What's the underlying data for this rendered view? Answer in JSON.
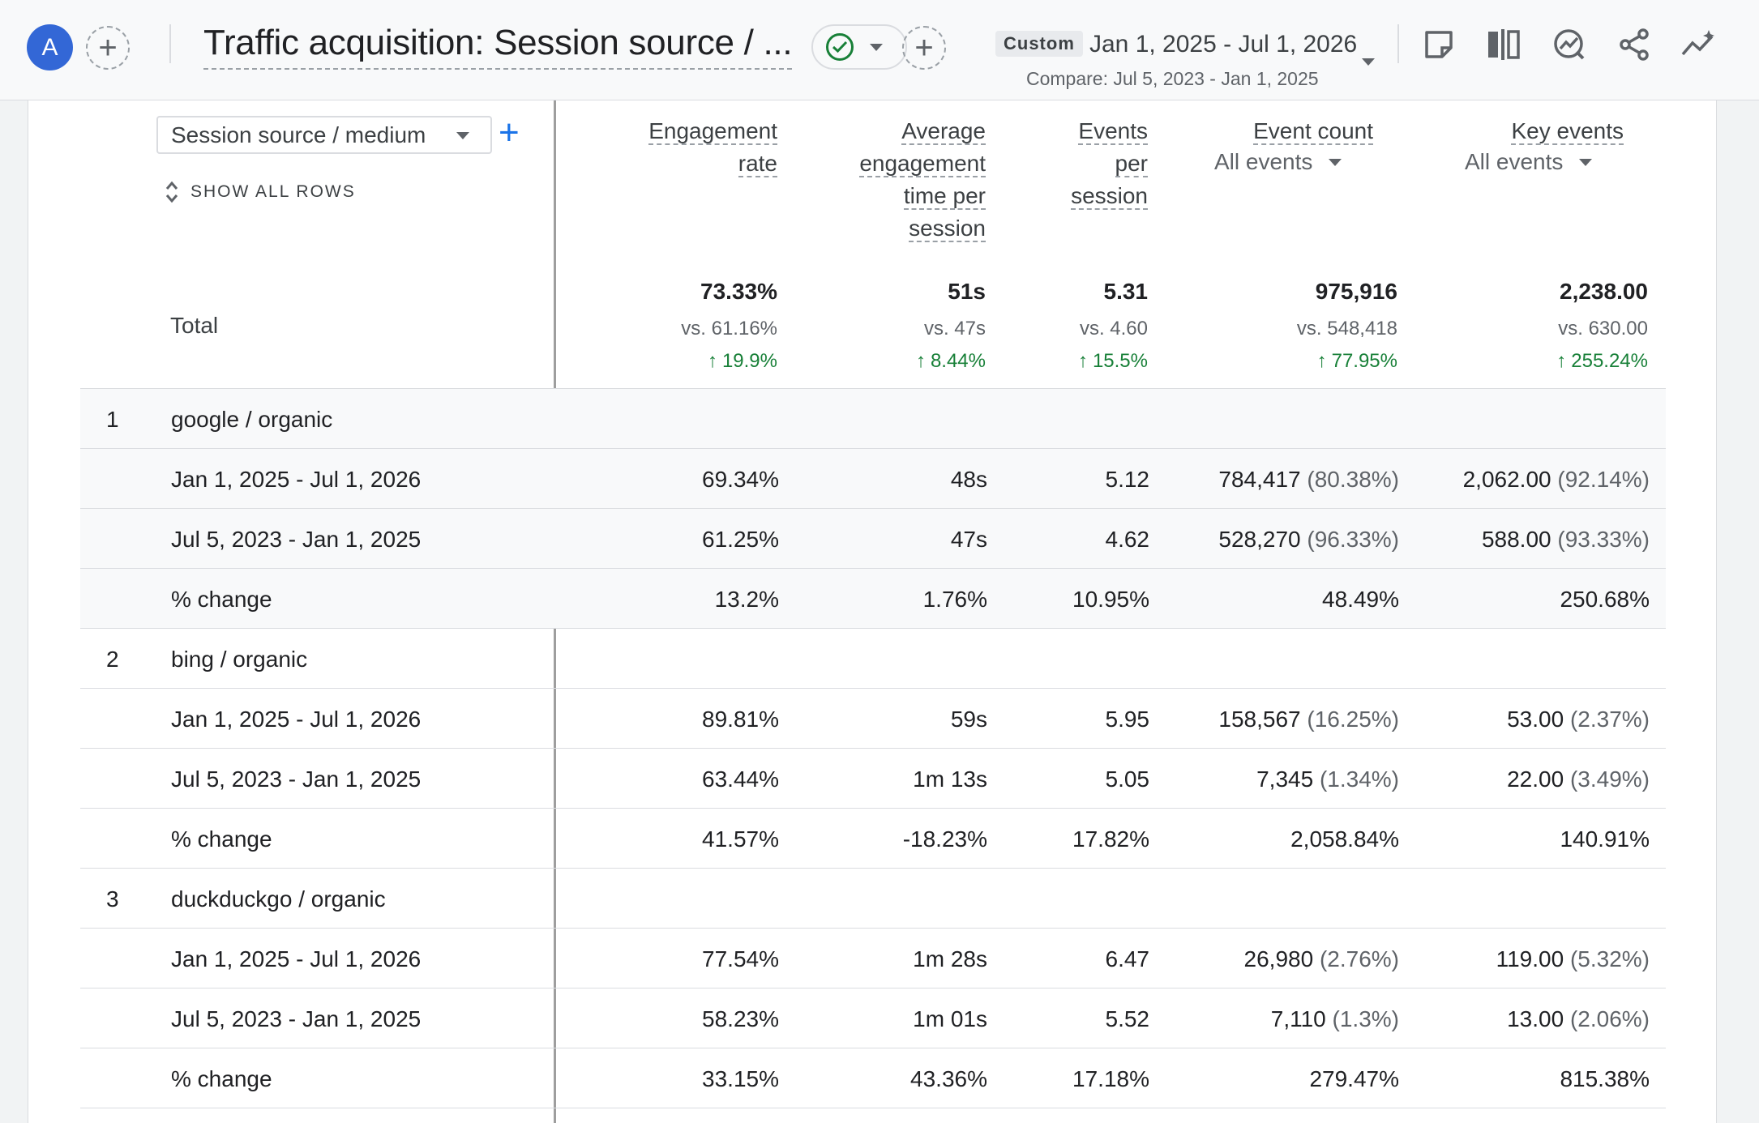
{
  "header": {
    "avatar_letter": "A",
    "title": "Traffic acquisition: Session source / ...",
    "custom_chip": "Custom",
    "date_range": "Jan 1, 2025 - Jul 1, 2026",
    "compare": "Compare: Jul 5, 2023 - Jan 1, 2025",
    "tools": [
      "note-icon",
      "compare-columns-icon",
      "insights-icon",
      "share-icon",
      "trend-icon"
    ]
  },
  "table": {
    "dimension_select": "Session source / medium",
    "show_all_rows": "SHOW ALL ROWS",
    "columns": [
      {
        "lines": [
          "Engagement",
          "rate"
        ]
      },
      {
        "lines": [
          "Average",
          "engagement",
          "time per",
          "session"
        ]
      },
      {
        "lines": [
          "Events",
          "per",
          "session"
        ]
      },
      {
        "lines": [
          "Event count"
        ],
        "sub": "All events"
      },
      {
        "lines": [
          "Key events"
        ],
        "sub": "All events"
      }
    ],
    "total": {
      "label": "Total",
      "values": [
        "73.33%",
        "51s",
        "5.31",
        "975,916",
        "2,238.00"
      ],
      "vs": [
        "vs. 61.16%",
        "vs. 47s",
        "vs. 4.60",
        "vs. 548,418",
        "vs. 630.00"
      ],
      "change": [
        "19.9%",
        "8.44%",
        "15.5%",
        "77.95%",
        "255.24%"
      ]
    },
    "groups": [
      {
        "num": "1",
        "name": "google / organic",
        "rows": [
          {
            "label": "Jan 1, 2025 - Jul 1, 2026",
            "cells": [
              "69.34%",
              "48s",
              "5.12",
              "784,417",
              "2,062.00"
            ],
            "pcts": [
              "",
              "",
              "",
              "(80.38%)",
              "(92.14%)"
            ]
          },
          {
            "label": "Jul 5, 2023 - Jan 1, 2025",
            "cells": [
              "61.25%",
              "47s",
              "4.62",
              "528,270",
              "588.00"
            ],
            "pcts": [
              "",
              "",
              "",
              "(96.33%)",
              "(93.33%)"
            ]
          },
          {
            "label": "% change",
            "cells": [
              "13.2%",
              "1.76%",
              "10.95%",
              "48.49%",
              "250.68%"
            ],
            "pcts": [
              "",
              "",
              "",
              "",
              ""
            ]
          }
        ]
      },
      {
        "num": "2",
        "name": "bing / organic",
        "rows": [
          {
            "label": "Jan 1, 2025 - Jul 1, 2026",
            "cells": [
              "89.81%",
              "59s",
              "5.95",
              "158,567",
              "53.00"
            ],
            "pcts": [
              "",
              "",
              "",
              "(16.25%)",
              "(2.37%)"
            ]
          },
          {
            "label": "Jul 5, 2023 - Jan 1, 2025",
            "cells": [
              "63.44%",
              "1m 13s",
              "5.05",
              "7,345",
              "22.00"
            ],
            "pcts": [
              "",
              "",
              "",
              "(1.34%)",
              "(3.49%)"
            ]
          },
          {
            "label": "% change",
            "cells": [
              "41.57%",
              "-18.23%",
              "17.82%",
              "2,058.84%",
              "140.91%"
            ],
            "pcts": [
              "",
              "",
              "",
              "",
              ""
            ]
          }
        ]
      },
      {
        "num": "3",
        "name": "duckduckgo / organic",
        "rows": [
          {
            "label": "Jan 1, 2025 - Jul 1, 2026",
            "cells": [
              "77.54%",
              "1m 28s",
              "6.47",
              "26,980",
              "119.00"
            ],
            "pcts": [
              "",
              "",
              "",
              "(2.76%)",
              "(5.32%)"
            ]
          },
          {
            "label": "Jul 5, 2023 - Jan 1, 2025",
            "cells": [
              "58.23%",
              "1m 01s",
              "5.52",
              "7,110",
              "13.00"
            ],
            "pcts": [
              "",
              "",
              "",
              "(1.3%)",
              "(2.06%)"
            ]
          },
          {
            "label": "% change",
            "cells": [
              "33.15%",
              "43.36%",
              "17.18%",
              "279.47%",
              "815.38%"
            ],
            "pcts": [
              "",
              "",
              "",
              "",
              ""
            ]
          }
        ]
      }
    ]
  }
}
